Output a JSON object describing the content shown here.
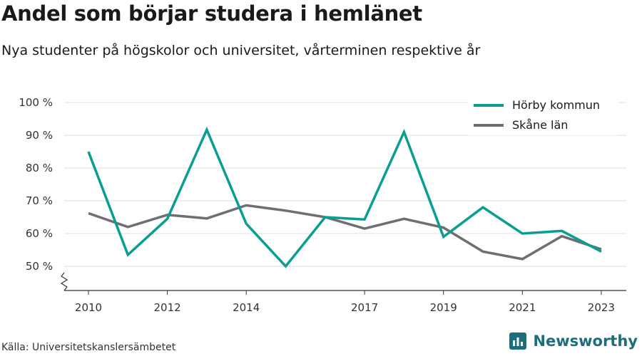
{
  "title": "Andel som börjar studera i hemlänet",
  "subtitle": "Nya studenter på högskolor och universitet, vårterminen respektive år",
  "source": "Källa: Universitetskanslersämbetet",
  "brand": {
    "name": "Newsworthy",
    "icon": "newsworthy-logo-icon",
    "color": "#1c6f7a"
  },
  "chart_data": {
    "type": "line",
    "x": [
      2010,
      2011,
      2012,
      2013,
      2014,
      2015,
      2016,
      2017,
      2018,
      2019,
      2020,
      2021,
      2022,
      2023
    ],
    "x_ticks": [
      2010,
      2012,
      2014,
      2017,
      2019,
      2021,
      2023
    ],
    "y_ticks": [
      50,
      60,
      70,
      80,
      90,
      100
    ],
    "y_tick_labels": [
      "50 %",
      "60 %",
      "70 %",
      "80 %",
      "90 %",
      "100 %"
    ],
    "ylim": [
      50,
      100
    ],
    "y_axis_break": true,
    "grid": true,
    "legend_position": "top-right",
    "series": [
      {
        "name": "Hörby kommun",
        "color": "#0a9e93",
        "values": [
          85,
          53.5,
          64.5,
          91.7,
          63,
          50,
          65,
          64.3,
          91,
          59,
          68,
          60,
          60.8,
          54.5
        ]
      },
      {
        "name": "Skåne län",
        "color": "#6e6e75",
        "values": [
          66.2,
          62,
          65.7,
          64.6,
          68.6,
          67,
          65,
          61.5,
          64.5,
          61.8,
          54.5,
          52.2,
          59.2,
          55.2
        ]
      }
    ]
  }
}
